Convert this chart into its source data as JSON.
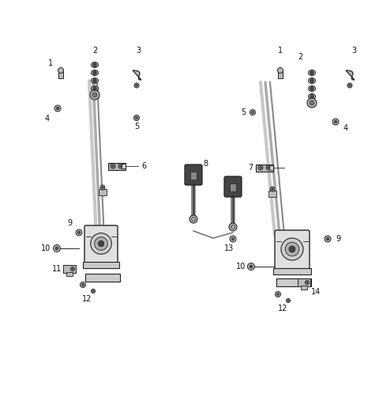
{
  "background_color": "#ffffff",
  "fig_width": 4.8,
  "fig_height": 5.12,
  "dpi": 100,
  "label_fontsize": 7.0,
  "label_color": "#111111",
  "line_color": "#222222",
  "belt_color": "#999999",
  "part_color": "#333333",
  "light_gray": "#bbbbbb",
  "mid_gray": "#777777",
  "dark_gray": "#444444"
}
